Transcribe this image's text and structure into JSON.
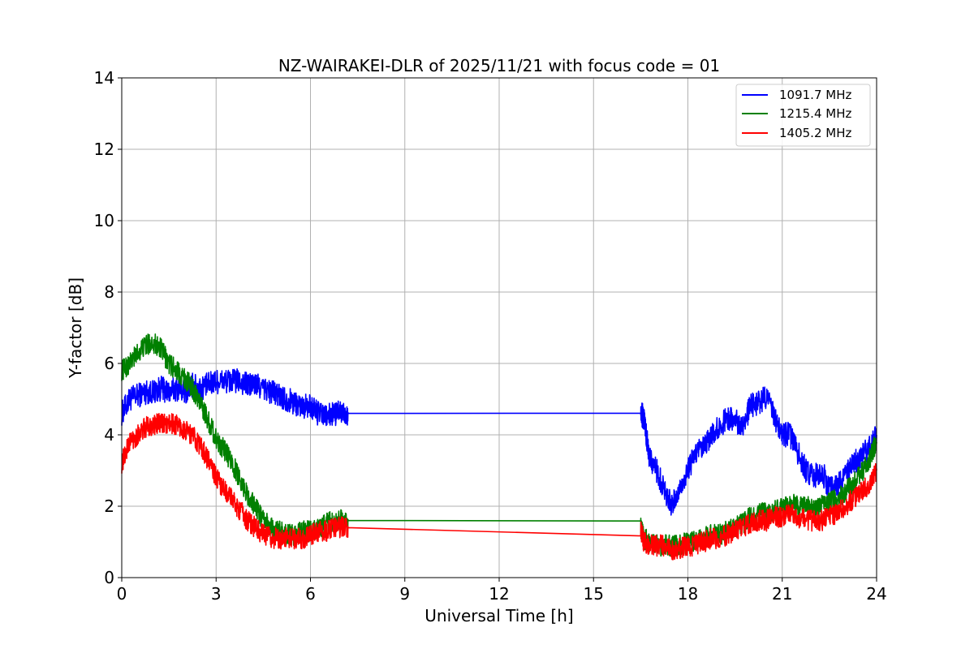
{
  "chart_data": {
    "type": "line",
    "title": "NZ-WAIRAKEI-DLR of 2025/11/21 with focus code = 01",
    "xlabel": "Universal Time [h]",
    "ylabel": "Y-factor [dB]",
    "xlim": [
      0,
      24
    ],
    "ylim": [
      0,
      14
    ],
    "xticks": [
      0,
      3,
      6,
      9,
      12,
      15,
      18,
      21,
      24
    ],
    "yticks": [
      0,
      2,
      4,
      6,
      8,
      10,
      12,
      14
    ],
    "grid": true,
    "legend_position": "top-right",
    "series": [
      {
        "name": "1091.7 MHz",
        "color": "#0000ff",
        "x": [
          0.0,
          0.25,
          0.5,
          0.75,
          1.0,
          1.25,
          1.5,
          1.75,
          2.0,
          2.25,
          2.5,
          2.75,
          3.0,
          3.25,
          3.5,
          3.75,
          4.0,
          4.25,
          4.5,
          4.75,
          5.0,
          5.25,
          5.5,
          5.75,
          6.0,
          6.25,
          6.5,
          6.75,
          7.0,
          7.2,
          16.5,
          16.6,
          16.75,
          17.0,
          17.25,
          17.5,
          17.75,
          18.0,
          18.25,
          18.5,
          18.75,
          19.0,
          19.25,
          19.5,
          19.75,
          20.0,
          20.25,
          20.5,
          20.75,
          21.0,
          21.25,
          21.5,
          21.75,
          22.0,
          22.25,
          22.5,
          22.75,
          23.0,
          23.25,
          23.5,
          23.75,
          24.0
        ],
        "y": [
          4.6,
          5.0,
          5.1,
          5.2,
          5.2,
          5.3,
          5.2,
          5.3,
          5.2,
          5.4,
          5.3,
          5.4,
          5.5,
          5.5,
          5.5,
          5.5,
          5.4,
          5.4,
          5.3,
          5.2,
          5.1,
          5.0,
          4.9,
          4.8,
          4.8,
          4.6,
          4.5,
          4.6,
          4.6,
          4.6,
          4.6,
          4.5,
          3.5,
          3.0,
          2.5,
          2.0,
          2.5,
          3.0,
          3.5,
          3.6,
          4.0,
          4.2,
          4.5,
          4.4,
          4.3,
          4.8,
          4.9,
          5.1,
          4.5,
          4.0,
          4.0,
          3.5,
          3.0,
          2.8,
          3.0,
          2.5,
          2.6,
          2.8,
          3.2,
          3.4,
          3.6,
          4.0
        ]
      },
      {
        "name": "1215.4 MHz",
        "color": "#008000",
        "x": [
          0.0,
          0.25,
          0.5,
          0.75,
          1.0,
          1.25,
          1.5,
          1.75,
          2.0,
          2.25,
          2.5,
          2.75,
          3.0,
          3.25,
          3.5,
          3.75,
          4.0,
          4.25,
          4.5,
          4.75,
          5.0,
          5.25,
          5.5,
          5.75,
          6.0,
          6.25,
          6.5,
          6.75,
          7.0,
          7.2,
          16.5,
          16.6,
          16.75,
          17.0,
          17.25,
          17.5,
          17.75,
          18.0,
          18.25,
          18.5,
          18.75,
          19.0,
          19.25,
          19.5,
          19.75,
          20.0,
          20.25,
          20.5,
          20.75,
          21.0,
          21.25,
          21.5,
          21.75,
          22.0,
          22.25,
          22.5,
          22.75,
          23.0,
          23.25,
          23.5,
          23.75,
          24.0
        ],
        "y": [
          5.8,
          6.0,
          6.3,
          6.5,
          6.6,
          6.4,
          6.0,
          5.8,
          5.6,
          5.3,
          4.9,
          4.4,
          3.9,
          3.6,
          3.2,
          2.8,
          2.3,
          2.0,
          1.6,
          1.4,
          1.3,
          1.2,
          1.2,
          1.3,
          1.3,
          1.4,
          1.5,
          1.6,
          1.6,
          1.6,
          1.4,
          1.1,
          1.0,
          0.9,
          0.9,
          0.9,
          0.9,
          1.0,
          1.0,
          1.1,
          1.2,
          1.2,
          1.3,
          1.4,
          1.5,
          1.7,
          1.8,
          1.8,
          1.9,
          2.0,
          2.1,
          2.0,
          2.0,
          1.9,
          2.0,
          2.1,
          2.2,
          2.4,
          2.6,
          2.9,
          3.3,
          3.8
        ]
      },
      {
        "name": "1405.2 MHz",
        "color": "#ff0000",
        "x": [
          0.0,
          0.25,
          0.5,
          0.75,
          1.0,
          1.25,
          1.5,
          1.75,
          2.0,
          2.25,
          2.5,
          2.75,
          3.0,
          3.25,
          3.5,
          3.75,
          4.0,
          4.25,
          4.5,
          4.75,
          5.0,
          5.25,
          5.5,
          5.75,
          6.0,
          6.25,
          6.5,
          6.75,
          7.0,
          7.2,
          16.5,
          16.6,
          16.75,
          17.0,
          17.25,
          17.5,
          17.75,
          18.0,
          18.25,
          18.5,
          18.75,
          19.0,
          19.25,
          19.5,
          19.75,
          20.0,
          20.25,
          20.5,
          20.75,
          21.0,
          21.25,
          21.5,
          21.75,
          22.0,
          22.25,
          22.5,
          22.75,
          23.0,
          23.25,
          23.5,
          23.75,
          24.0
        ],
        "y": [
          3.2,
          3.8,
          4.0,
          4.2,
          4.3,
          4.3,
          4.3,
          4.3,
          4.1,
          4.0,
          3.7,
          3.3,
          2.8,
          2.5,
          2.2,
          1.9,
          1.6,
          1.4,
          1.2,
          1.1,
          1.1,
          1.1,
          1.1,
          1.1,
          1.2,
          1.3,
          1.3,
          1.4,
          1.4,
          1.4,
          1.4,
          1.0,
          0.9,
          0.9,
          0.9,
          0.8,
          0.8,
          0.9,
          0.9,
          1.0,
          1.1,
          1.1,
          1.2,
          1.3,
          1.4,
          1.5,
          1.6,
          1.6,
          1.7,
          1.7,
          1.8,
          1.7,
          1.6,
          1.6,
          1.6,
          1.7,
          1.8,
          2.0,
          2.2,
          2.4,
          2.6,
          3.0
        ]
      }
    ]
  }
}
